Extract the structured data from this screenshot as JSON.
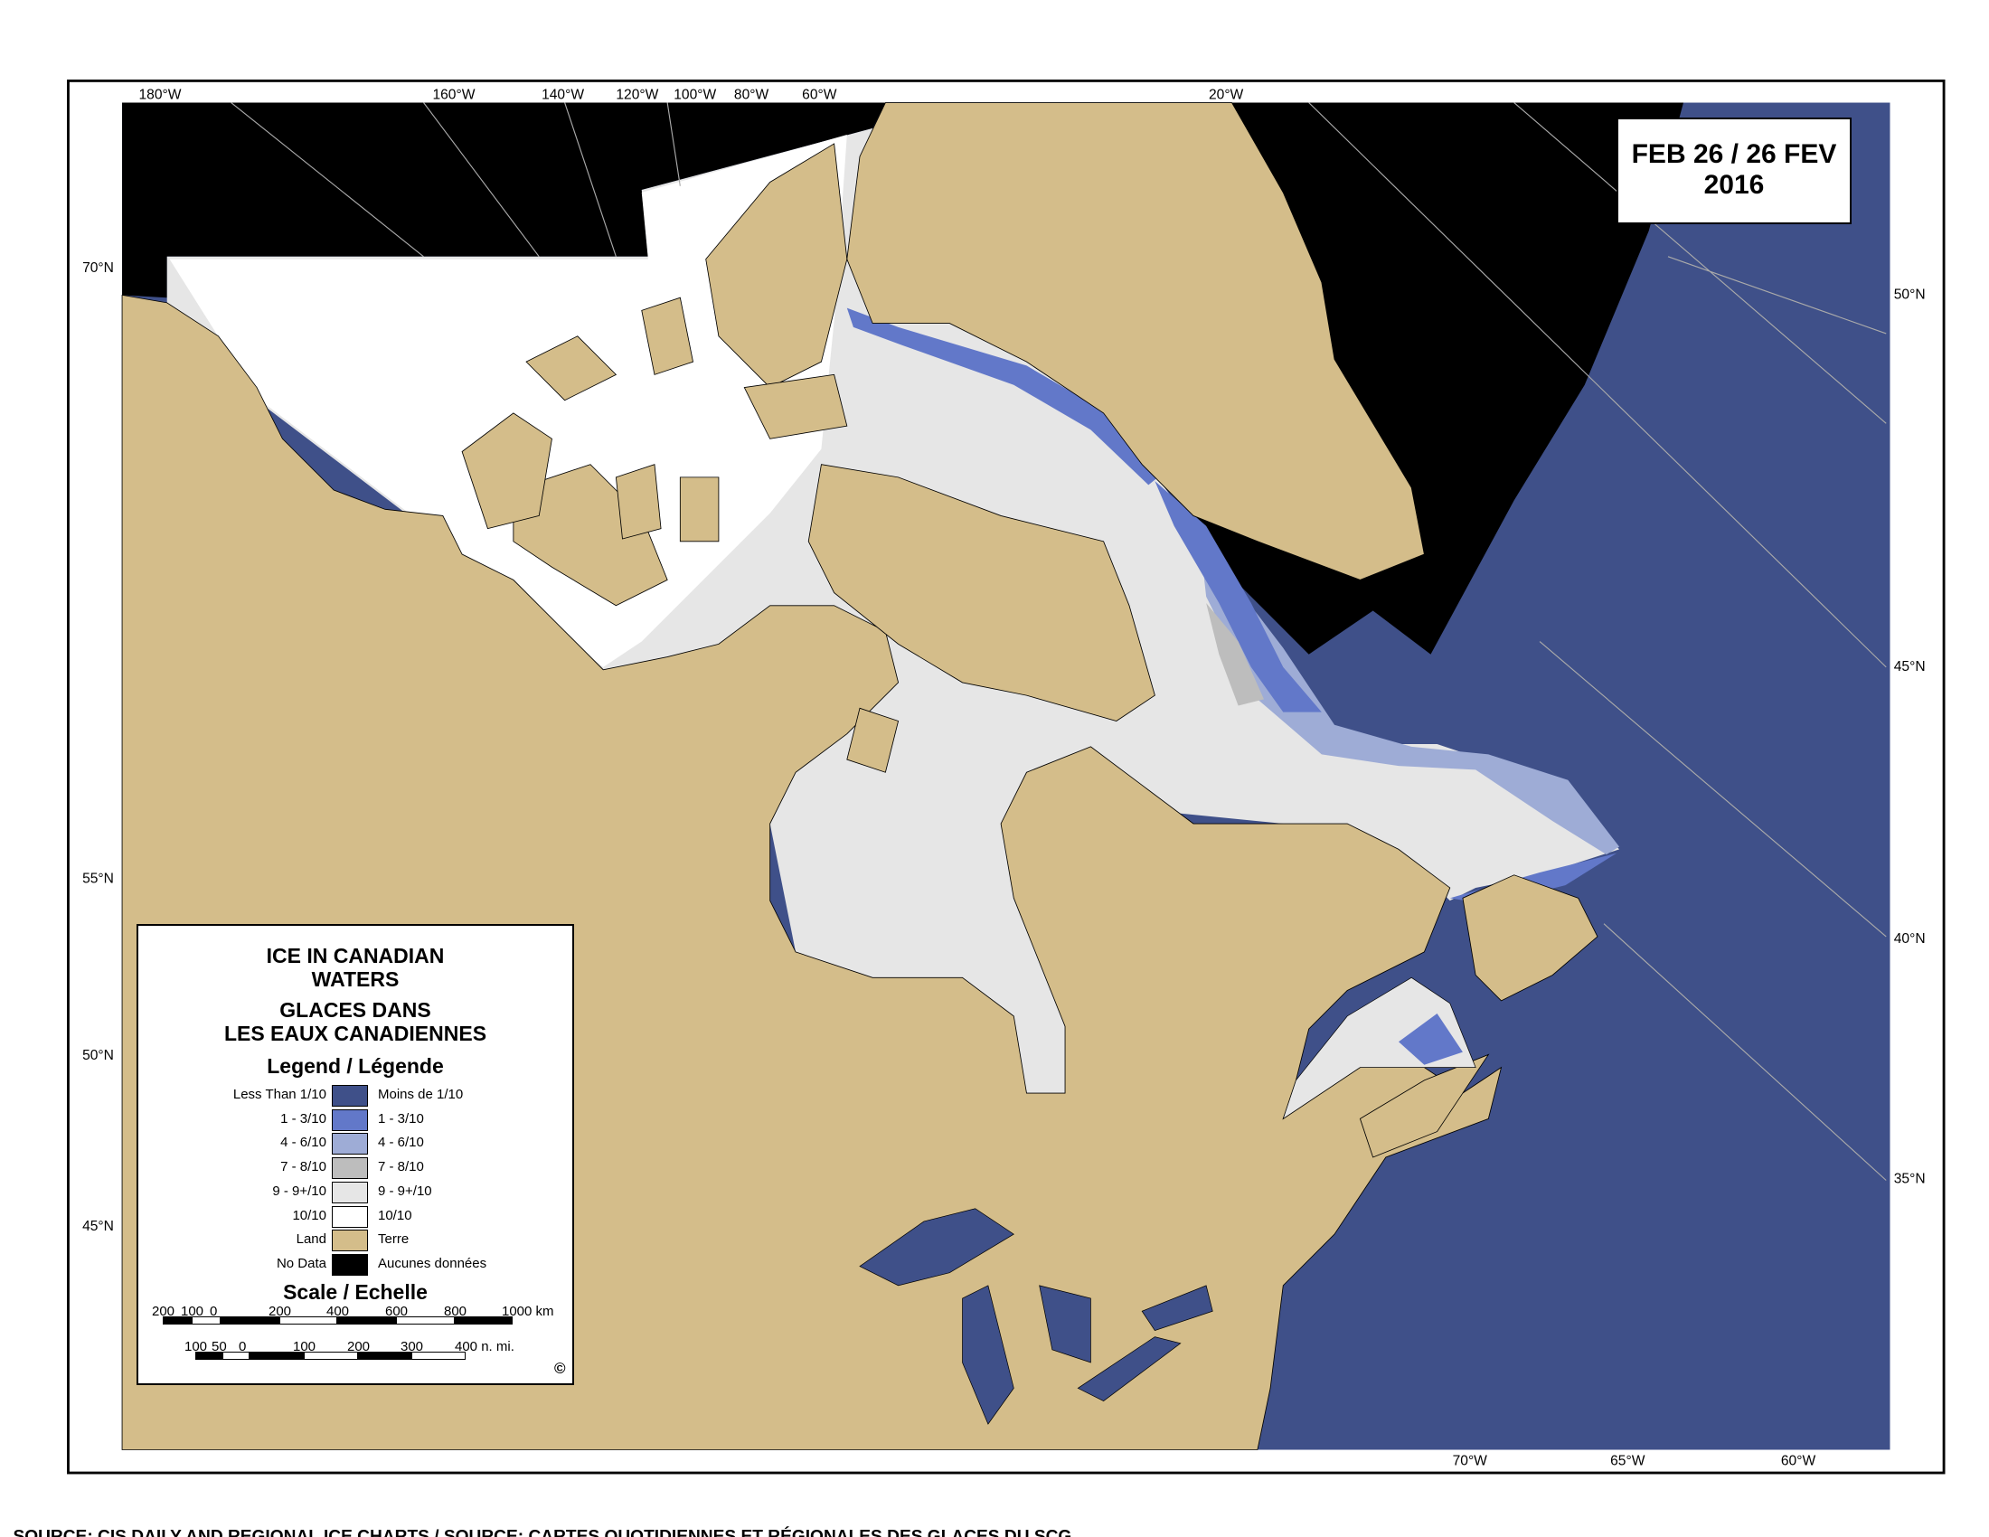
{
  "date_box": {
    "line1": "FEB 26 / 26 FEV",
    "line2": "2016"
  },
  "graticule_labels": {
    "top": [
      "180°W",
      "160°W",
      "140°W",
      "120°W",
      "100°W",
      "80°W",
      "60°W",
      "20°W"
    ],
    "left": [
      "70°N",
      "55°N",
      "50°N",
      "45°N"
    ],
    "right": [
      "50°N",
      "45°N",
      "40°N",
      "35°N"
    ],
    "bottom": [
      "70°W",
      "65°W",
      "60°W"
    ]
  },
  "legend": {
    "title_en": [
      "ICE IN CANADIAN",
      "WATERS"
    ],
    "title_fr": [
      "GLACES DANS",
      "LES EAUX CANADIENNES"
    ],
    "legend_heading": "Legend / Légende",
    "items": [
      {
        "en": "Less Than 1/10",
        "fr": "Moins de 1/10",
        "color": "#3f5089"
      },
      {
        "en": "1 - 3/10",
        "fr": "1 - 3/10",
        "color": "#6278c9"
      },
      {
        "en": "4 - 6/10",
        "fr": "4 - 6/10",
        "color": "#9eacd6"
      },
      {
        "en": "7 - 8/10",
        "fr": "7 - 8/10",
        "color": "#bdbdbd"
      },
      {
        "en": "9 - 9+/10",
        "fr": "9 - 9+/10",
        "color": "#e6e6e6"
      },
      {
        "en": "10/10",
        "fr": "10/10",
        "color": "#ffffff"
      },
      {
        "en": "Land",
        "fr": "Terre",
        "color": "#d4bd8a"
      },
      {
        "en": "No Data",
        "fr": "Aucunes données",
        "color": "#000000"
      }
    ],
    "scale_heading": "Scale / Echelle",
    "km_ticks": [
      "200",
      "100",
      "0",
      "200",
      "400",
      "600",
      "800",
      "1000 km"
    ],
    "nmi_ticks": [
      "100",
      "50",
      "0",
      "100",
      "200",
      "300",
      "400 n. mi."
    ],
    "copyright": "©"
  },
  "source": "SOURCE: CIS DAILY AND REGIONAL ICE CHARTS / SOURCE: CARTES QUOTIDIENNES ET RÉGIONALES DES GLACES DU SCG"
}
